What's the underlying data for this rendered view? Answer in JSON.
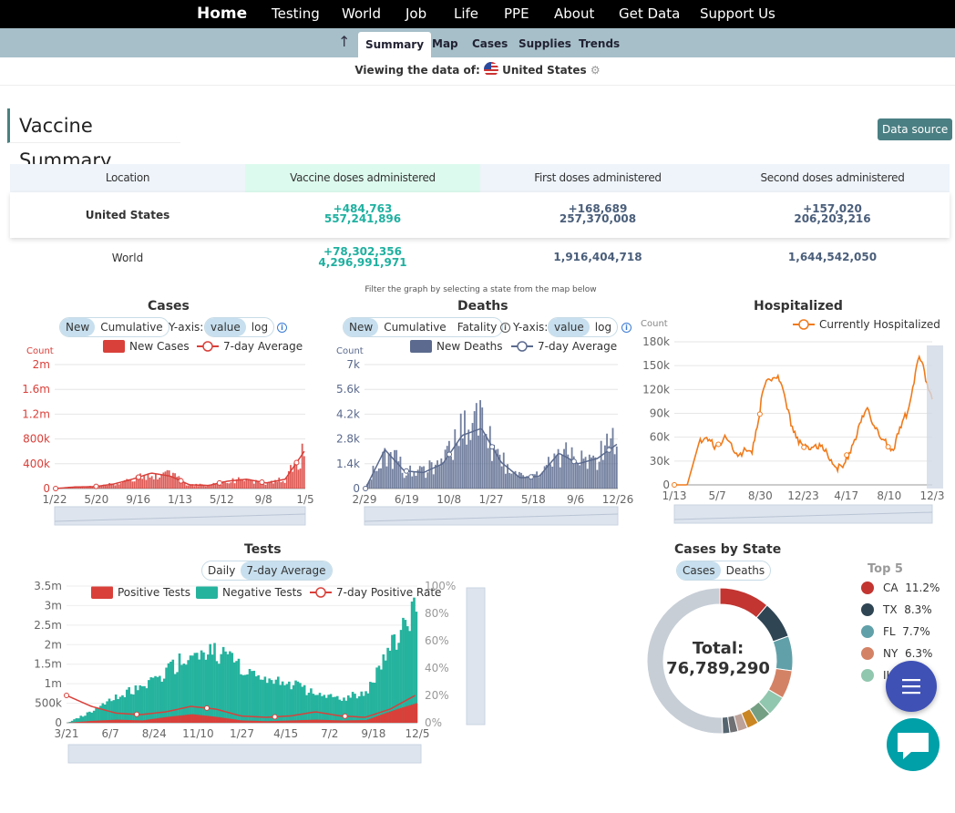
{
  "nav": {
    "home": "Home",
    "items": [
      "Testing",
      "World",
      "Job",
      "Life",
      "PPE",
      "About",
      "Get Data",
      "Support Us"
    ]
  },
  "subnav": {
    "up_icon": "arrow-up-icon",
    "items": [
      "Summary",
      "Map",
      "Cases",
      "Supplies",
      "Trends"
    ],
    "active": "Summary"
  },
  "viewing": {
    "label": "Viewing the data of:",
    "country": "United States",
    "flag_icon": "us-flag-icon",
    "settings_icon": "gear-icon"
  },
  "vaccine": {
    "title": "Vaccine Summary",
    "data_source": "Data source",
    "headers": [
      "Location",
      "Vaccine doses administered",
      "First doses administered",
      "Second doses administered"
    ],
    "rows": [
      {
        "location": "United States",
        "doses_new": "+484,763",
        "doses_total": "557,241,896",
        "first_new": "+168,689",
        "first_total": "257,370,008",
        "second_new": "+157,020",
        "second_total": "206,203,216"
      },
      {
        "location": "World",
        "doses_new": "+78,302,356",
        "doses_total": "4,296,991,971",
        "first_total": "1,916,404,718",
        "second_total": "1,644,542,050"
      }
    ]
  },
  "filter_note": "Filter the graph by selecting a state from the map below",
  "cases_panel": {
    "title": "Cases",
    "toggle": [
      "New",
      "Cumulative"
    ],
    "yaxis_label": "Y-axis:",
    "yaxis_toggle": [
      "value",
      "log"
    ]
  },
  "deaths_panel": {
    "title": "Deaths",
    "toggle": [
      "New",
      "Cumulative",
      "Fatality"
    ],
    "yaxis_label": "Y-axis:",
    "yaxis_toggle": [
      "value",
      "log"
    ]
  },
  "hosp_panel": {
    "title": "Hospitalized"
  },
  "tests_panel": {
    "title": "Tests",
    "toggle": [
      "Daily",
      "7-day Average"
    ]
  },
  "state_panel": {
    "title": "Cases by State",
    "toggle": [
      "Cases",
      "Deaths"
    ],
    "total_label": "Total:",
    "total_value": "76,789,290",
    "top5_title": "Top 5",
    "top5": [
      {
        "state": "CA",
        "pct": "11.2%",
        "color": "#c23531"
      },
      {
        "state": "TX",
        "pct": "8.3%",
        "color": "#2f4554"
      },
      {
        "state": "FL",
        "pct": "7.7%",
        "color": "#61a0a8"
      },
      {
        "state": "NY",
        "pct": "6.3%",
        "color": "#d48265"
      },
      {
        "state": "IL",
        "pct": "",
        "color": "#91c7ae"
      }
    ]
  },
  "fab": {
    "menu_icon": "menu-icon",
    "chat_icon": "chat-icon"
  },
  "chart_data": [
    {
      "type": "bar",
      "title": "Cases",
      "ylabel": "Count",
      "legend": [
        "New Cases",
        "7-day Average"
      ],
      "x_ticks": [
        "1/22",
        "5/20",
        "9/16",
        "1/13",
        "5/12",
        "9/8",
        "1/5"
      ],
      "y_ticks": [
        "0",
        "400k",
        "800k",
        "1.2m",
        "1.6m",
        "2m"
      ],
      "ylim": [
        0,
        2000000
      ],
      "color": "#d9403a",
      "series": [
        {
          "name": "7-day Average",
          "values": [
            0,
            25000,
            30000,
            70000,
            150000,
            250000,
            200000,
            60000,
            50000,
            120000,
            150000,
            90000,
            150000,
            600000
          ]
        }
      ]
    },
    {
      "type": "bar",
      "title": "Deaths",
      "ylabel": "Count",
      "legend": [
        "New Deaths",
        "7-day Average"
      ],
      "x_ticks": [
        "2/29",
        "6/19",
        "10/8",
        "1/27",
        "5/18",
        "9/6",
        "12/26"
      ],
      "y_ticks": [
        "0",
        "1.4k",
        "2.8k",
        "4.2k",
        "5.6k",
        "7k"
      ],
      "ylim": [
        0,
        7000
      ],
      "color": "#5b6a8e",
      "series": [
        {
          "name": "7-day Average",
          "values": [
            0,
            2200,
            1000,
            900,
            1400,
            3000,
            3400,
            1500,
            600,
            700,
            2000,
            1400,
            1700,
            2500
          ]
        }
      ]
    },
    {
      "type": "line",
      "title": "Hospitalized",
      "ylabel": "Count",
      "legend": [
        "Currently Hospitalized"
      ],
      "x_ticks": [
        "1/13",
        "5/7",
        "8/30",
        "12/23",
        "4/17",
        "8/10",
        "12/3"
      ],
      "y_ticks": [
        "0",
        "30k",
        "60k",
        "90k",
        "120k",
        "150k",
        "180k"
      ],
      "ylim": [
        0,
        180000
      ],
      "color": "#f07a1a",
      "series": [
        {
          "name": "Currently Hospitalized",
          "values": [
            0,
            0,
            58000,
            50000,
            58000,
            40000,
            42000,
            125000,
            140000,
            80000,
            45000,
            52000,
            36000,
            17000,
            60000,
            98000,
            55000,
            46000,
            90000,
            160000,
            110000
          ]
        }
      ]
    },
    {
      "type": "area",
      "title": "Tests",
      "legend": [
        "Positive Tests",
        "Negative Tests",
        "7-day Positive Rate"
      ],
      "x_ticks": [
        "3/21",
        "6/7",
        "8/24",
        "11/10",
        "1/27",
        "4/15",
        "7/2",
        "9/18",
        "12/5"
      ],
      "y_ticks": [
        "0",
        "500k",
        "1m",
        "1.5m",
        "2m",
        "2.5m",
        "3m",
        "3.5m"
      ],
      "y2_ticks": [
        "0%",
        "20%",
        "40%",
        "60%",
        "80%",
        "100%"
      ],
      "ylim": [
        0,
        3500000
      ],
      "series": [
        {
          "name": "Negative Tests",
          "values": [
            0,
            300000,
            700000,
            900000,
            1300000,
            1800000,
            1800000,
            1400000,
            1100000,
            1000000,
            700000,
            600000,
            800000,
            2000000,
            2900000
          ]
        },
        {
          "name": "Positive Tests",
          "values": [
            0,
            50000,
            80000,
            60000,
            150000,
            220000,
            150000,
            60000,
            40000,
            60000,
            80000,
            60000,
            70000,
            300000,
            500000
          ]
        },
        {
          "name": "7-day Positive Rate",
          "values": [
            20,
            12,
            7,
            6,
            8,
            12,
            10,
            5,
            4,
            5,
            8,
            5,
            4,
            10,
            20
          ]
        }
      ]
    },
    {
      "type": "pie",
      "title": "Cases by State",
      "categories": [
        "CA",
        "TX",
        "FL",
        "NY",
        "IL",
        "Other"
      ],
      "values": [
        11.2,
        8.3,
        7.7,
        6.3,
        4.5,
        62.0
      ]
    }
  ]
}
